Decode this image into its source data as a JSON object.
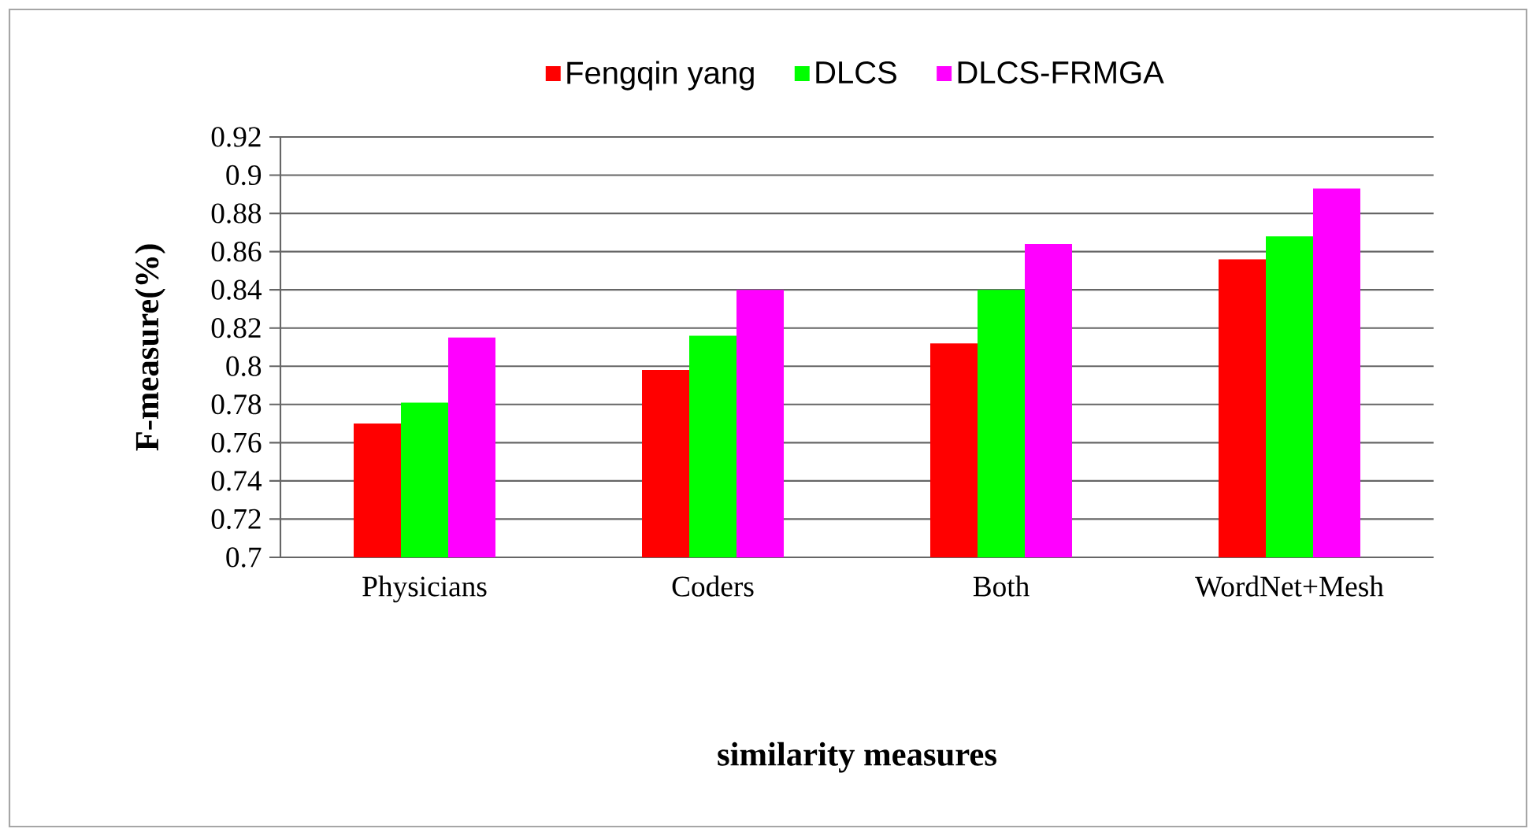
{
  "chart_data": {
    "type": "bar",
    "xlabel": "similarity measures",
    "ylabel": "F-measure(%)",
    "categories": [
      "Physicians",
      "Coders",
      "Both",
      "WordNet+Mesh"
    ],
    "series": [
      {
        "name": "Fengqin yang",
        "color": "#ff0000",
        "values": [
          0.77,
          0.798,
          0.812,
          0.856
        ]
      },
      {
        "name": "DLCS",
        "color": "#00ff00",
        "values": [
          0.781,
          0.816,
          0.84,
          0.868
        ]
      },
      {
        "name": "DLCS-FRMGA",
        "color": "#ff00ff",
        "values": [
          0.815,
          0.84,
          0.864,
          0.893
        ]
      }
    ],
    "ylim": [
      0.7,
      0.92
    ],
    "yticks": [
      0.7,
      0.72,
      0.74,
      0.76,
      0.78,
      0.8,
      0.82,
      0.84,
      0.86,
      0.88,
      0.9,
      0.92
    ],
    "grid": "y",
    "legend": "top"
  }
}
